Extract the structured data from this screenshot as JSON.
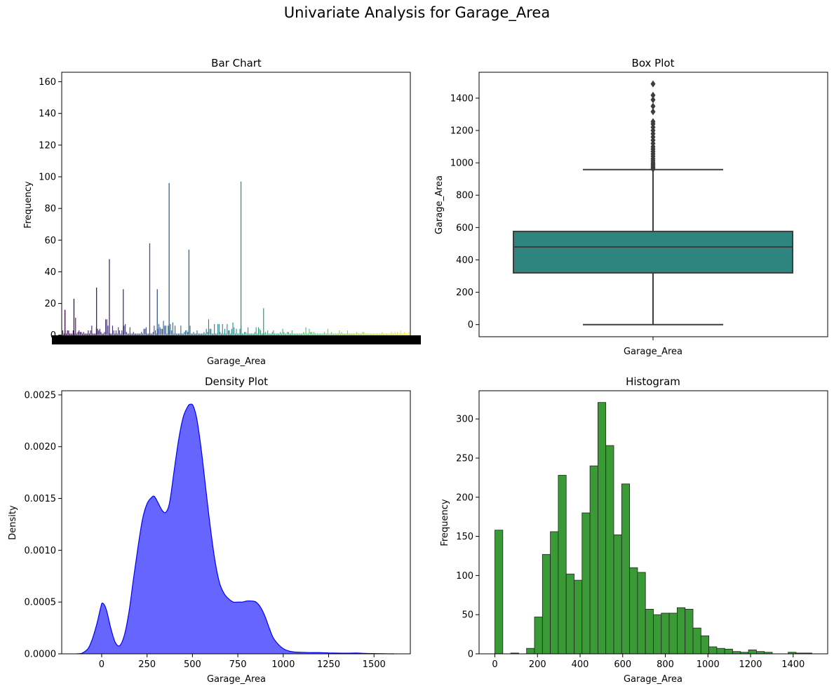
{
  "figure": {
    "title": "Univariate Analysis for Garage_Area"
  },
  "colors": {
    "bar_cmap": [
      "#440154",
      "#3b528b",
      "#21918c",
      "#5ec962",
      "#fde725"
    ],
    "box": "#2e8580",
    "kde_fill": "#6666ff",
    "kde_line": "#0000ff",
    "hist": "#3a9a36"
  },
  "chart_data": [
    {
      "type": "bar",
      "title": "Bar Chart",
      "xlabel": "Garage_Area",
      "ylabel": "Frequency",
      "ylim": [
        -1,
        166
      ],
      "yticks": [
        0,
        20,
        40,
        60,
        80,
        100,
        120,
        140,
        160
      ],
      "x_tick_labels_note": "overlapping, illegible",
      "notable_bars": [
        {
          "position": 0.006,
          "value": 16
        },
        {
          "position": 0.032,
          "value": 23
        },
        {
          "position": 0.097,
          "value": 30
        },
        {
          "position": 0.134,
          "value": 48
        },
        {
          "position": 0.174,
          "value": 29
        },
        {
          "position": 0.25,
          "value": 58
        },
        {
          "position": 0.272,
          "value": 29
        },
        {
          "position": 0.306,
          "value": 96
        },
        {
          "position": 0.363,
          "value": 54
        },
        {
          "position": 0.513,
          "value": 97
        },
        {
          "position": 0.578,
          "value": 17
        }
      ]
    },
    {
      "type": "box",
      "title": "Box Plot",
      "xlabel": "Garage_Area",
      "ylabel": "Garage_Area",
      "ylim": [
        -75,
        1560
      ],
      "yticks": [
        0,
        200,
        400,
        600,
        800,
        1000,
        1200,
        1400
      ],
      "whisker_low": 0,
      "q1": 320,
      "median": 480,
      "q3": 576,
      "whisker_high": 958,
      "outliers": [
        962,
        970,
        980,
        990,
        1000,
        1012,
        1025,
        1040,
        1055,
        1070,
        1085,
        1100,
        1120,
        1140,
        1160,
        1180,
        1200,
        1220,
        1240,
        1255,
        1316,
        1350,
        1390,
        1418,
        1488
      ]
    },
    {
      "type": "area",
      "title": "Density Plot",
      "xlabel": "Garage_Area",
      "ylabel": "Density",
      "xlim": [
        -220,
        1700
      ],
      "ylim": [
        0,
        0.00254
      ],
      "xticks": [
        0,
        250,
        500,
        750,
        1000,
        1250,
        1500
      ],
      "yticks": [
        "0.0000",
        "0.0005",
        "0.0010",
        "0.0015",
        "0.0020",
        "0.0025"
      ],
      "x": [
        -140,
        -110,
        -75,
        -50,
        -25,
        -5,
        5,
        25,
        50,
        75,
        100,
        125,
        150,
        175,
        200,
        225,
        250,
        275,
        290,
        310,
        335,
        355,
        375,
        400,
        425,
        450,
        475,
        490,
        505,
        525,
        550,
        575,
        600,
        625,
        650,
        675,
        700,
        725,
        750,
        775,
        800,
        825,
        850,
        875,
        900,
        925,
        950,
        1000,
        1050,
        1100,
        1150,
        1200,
        1250,
        1300,
        1350,
        1400,
        1450,
        1500,
        1550,
        1610
      ],
      "y": [
        0,
        5e-06,
        5e-05,
        0.00015,
        0.0003,
        0.00045,
        0.00049,
        0.00043,
        0.00025,
        0.00011,
        8e-05,
        0.00018,
        0.0004,
        0.00072,
        0.00103,
        0.0013,
        0.00145,
        0.00151,
        0.00152,
        0.00146,
        0.00138,
        0.00137,
        0.00147,
        0.00178,
        0.00208,
        0.00229,
        0.00239,
        0.00241,
        0.00239,
        0.00226,
        0.00195,
        0.00157,
        0.0012,
        0.00089,
        0.00068,
        0.00058,
        0.00053,
        0.0005,
        0.0005,
        0.0005,
        0.00051,
        0.00051,
        0.0005,
        0.00045,
        0.00036,
        0.00024,
        0.00014,
        5e-05,
        2e-05,
        1.5e-05,
        1.2e-05,
        1.2e-05,
        9e-06,
        7e-06,
        6e-06,
        8e-06,
        4e-06,
        2e-06,
        1e-06,
        0
      ],
      "fill_opacity": 0.6
    },
    {
      "type": "bar",
      "title": "Histogram",
      "xlabel": "Garage_Area",
      "ylabel": "Frequency",
      "xlim": [
        -74,
        1562
      ],
      "ylim": [
        0,
        336
      ],
      "xticks": [
        0,
        200,
        400,
        600,
        800,
        1000,
        1200,
        1400
      ],
      "yticks": [
        0,
        50,
        100,
        150,
        200,
        250,
        300
      ],
      "bin_width": 37.2,
      "bin_start": 0,
      "values": [
        158,
        0,
        1,
        0,
        7,
        47,
        127,
        156,
        228,
        102,
        94,
        180,
        240,
        321,
        266,
        152,
        217,
        110,
        104,
        57,
        50,
        52,
        52,
        59,
        57,
        33,
        23,
        9,
        7,
        6,
        3,
        2,
        5,
        3,
        2,
        0,
        0,
        2,
        1,
        1
      ]
    }
  ]
}
